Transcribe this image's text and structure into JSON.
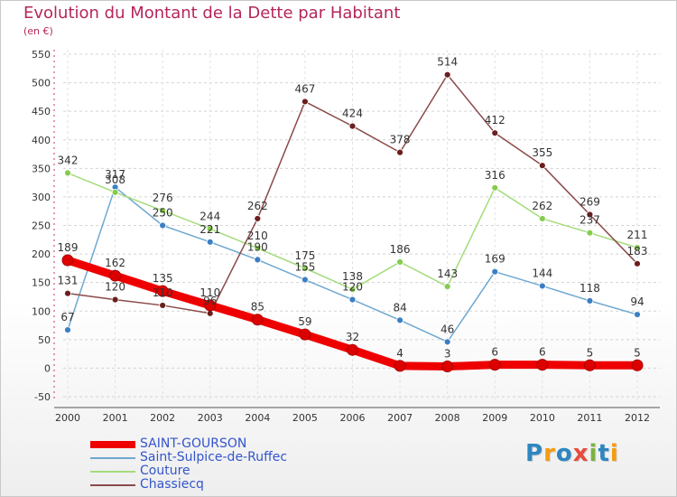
{
  "header": {
    "title": "Evolution du Montant de la Dette par Habitant",
    "subtitle": "(en €)"
  },
  "logo": {
    "text": "Proxiti",
    "letters": [
      {
        "ch": "P",
        "color": "#2e86c1"
      },
      {
        "ch": "r",
        "color": "#f39c12"
      },
      {
        "ch": "o",
        "color": "#2e86c1"
      },
      {
        "ch": "x",
        "color": "#e74c3c"
      },
      {
        "ch": "i",
        "color": "#7cb342"
      },
      {
        "ch": "t",
        "color": "#2e86c1"
      },
      {
        "ch": "i",
        "color": "#f39c12"
      }
    ]
  },
  "chart_data": {
    "type": "line",
    "title": "Evolution du Montant de la Dette par Habitant",
    "subtitle": "(en €)",
    "x": [
      "2000",
      "2001",
      "2002",
      "2003",
      "2004",
      "2005",
      "2006",
      "2007",
      "2008",
      "2009",
      "2010",
      "2011",
      "2012"
    ],
    "ylim": [
      -50,
      550
    ],
    "yticks": [
      -50,
      0,
      50,
      100,
      150,
      200,
      250,
      300,
      350,
      400,
      450,
      500,
      550
    ],
    "grid": "horizontal dashed",
    "legend_position": "bottom-left",
    "series": [
      {
        "name": "SAINT-GOURSON",
        "color": "#ee0000",
        "marker": "#dd0000",
        "emphasis": true,
        "values": [
          189,
          162,
          135,
          110,
          85,
          59,
          32,
          4,
          3,
          6,
          6,
          5,
          5
        ],
        "labels": [
          "189",
          "162",
          "135",
          "110",
          "85",
          "59",
          "32",
          "4",
          "3",
          "6",
          "6",
          "5",
          "5"
        ]
      },
      {
        "name": "Saint-Sulpice-de-Ruffec",
        "color": "#6fa8d0",
        "marker": "#3b7fc4",
        "values": [
          67,
          317,
          250,
          221,
          190,
          155,
          120,
          84,
          46,
          169,
          144,
          118,
          94
        ],
        "labels": [
          "67",
          "317",
          "250",
          "221",
          "190",
          "155",
          "120",
          "84",
          "46",
          "169",
          "144",
          "118",
          "94"
        ]
      },
      {
        "name": "Couture",
        "color": "#a4dc7c",
        "marker": "#86cc4a",
        "values": [
          342,
          308,
          276,
          244,
          210,
          175,
          138,
          186,
          143,
          316,
          262,
          237,
          211
        ],
        "labels": [
          "342",
          "308",
          "276",
          "244",
          "210",
          "175",
          "138",
          "186",
          "143",
          "316",
          "262",
          "237",
          "211"
        ]
      },
      {
        "name": "Chassiecq",
        "color": "#8b4a4a",
        "marker": "#6b1e1e",
        "values": [
          131,
          120,
          110,
          96,
          262,
          467,
          424,
          378,
          514,
          412,
          355,
          269,
          183
        ],
        "labels": [
          "131",
          "120",
          "110",
          "96",
          "262",
          "467",
          "424",
          "378",
          "514",
          "412",
          "355",
          "269",
          "183"
        ]
      }
    ]
  }
}
